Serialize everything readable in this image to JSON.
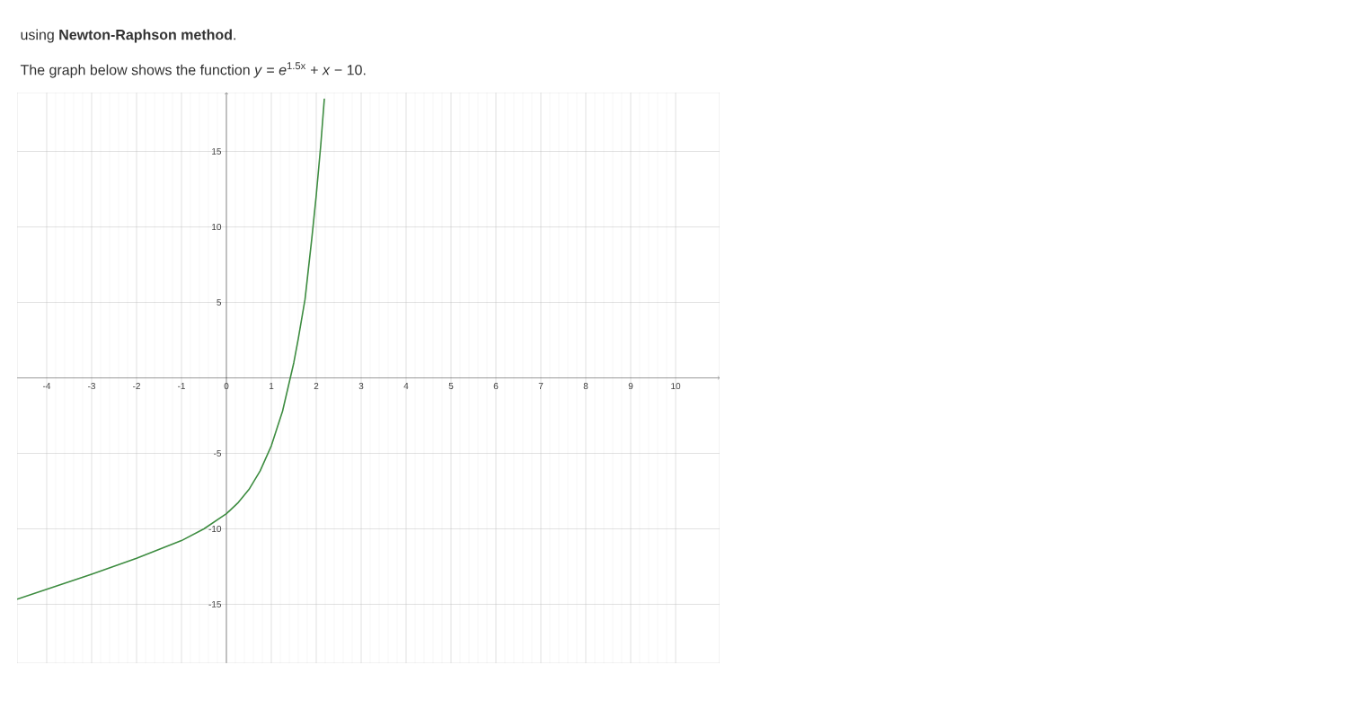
{
  "chart_data": {
    "type": "line",
    "title": "using **Newton-Raphson method**.",
    "subtitle": "The graph below shows the function *y* = *e*$^{1.5x}$ + *x* − 10.",
    "x": [
      -4.66,
      -4,
      -3,
      -2,
      -1,
      -0.5,
      0,
      0.25,
      0.5,
      0.75,
      1,
      1.25,
      1.5,
      1.6,
      1.75,
      1.9,
      2.0,
      2.1,
      2.18
    ],
    "series": [
      {
        "color": "#3d8c40",
        "values": [
          -14.66,
          -14.0,
          -13.0,
          -11.95,
          -10.78,
          -10.0,
          -9.0,
          -8.3,
          -7.4,
          -6.17,
          -4.5,
          -2.2,
          1.0,
          2.6,
          5.2,
          9.2,
          12.1,
          15.4,
          18.5
        ]
      }
    ],
    "xlim": [
      -4.66,
      10.98
    ],
    "ylim": [
      -18.9,
      18.9
    ],
    "xticks": [
      -4,
      -3,
      -2,
      -1,
      0,
      1,
      2,
      3,
      4,
      5,
      6,
      7,
      8,
      9,
      10
    ],
    "yticks": [
      -15,
      -10,
      -5,
      5,
      10,
      15
    ],
    "grid": true
  }
}
